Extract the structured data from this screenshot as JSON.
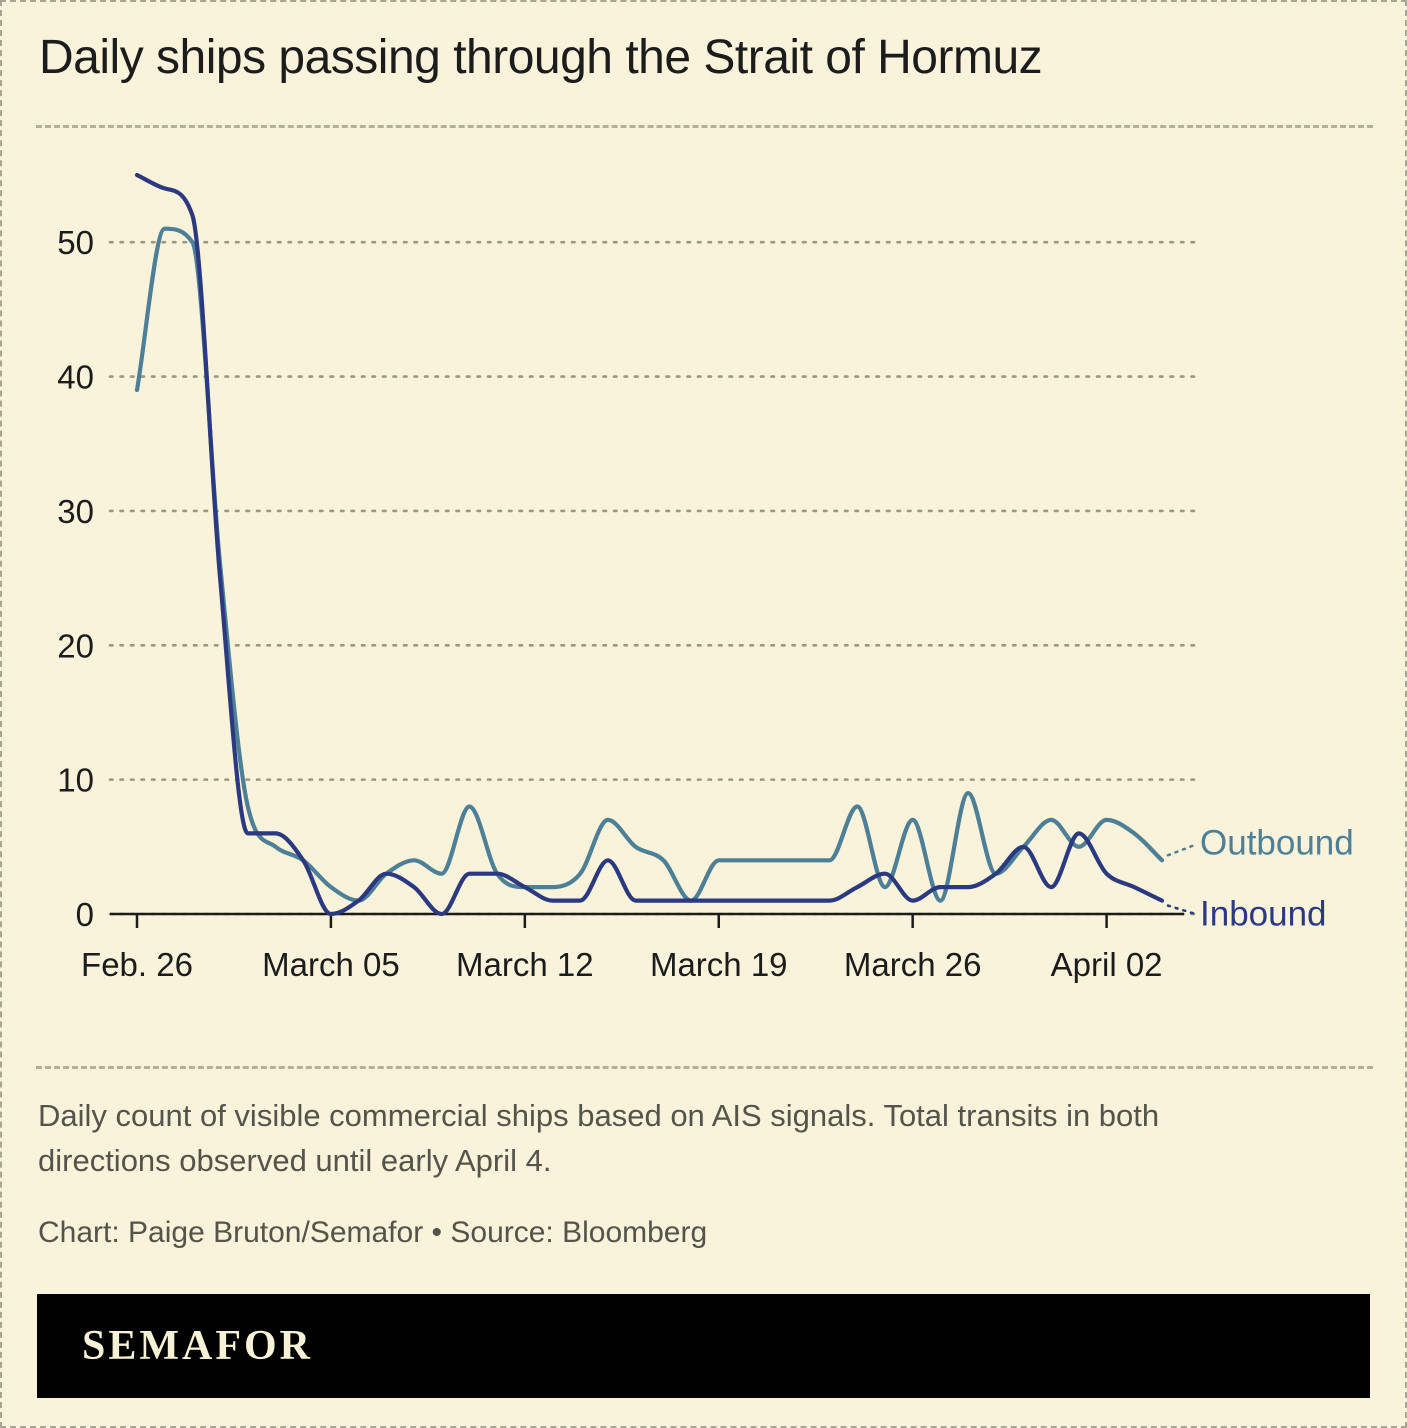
{
  "page": {
    "caption": "Daily count of visible commercial ships based on AIS signals. Total transits in both directions observed until early April 4.",
    "credit": "Chart: Paige Bruton/Semafor • Source: Bloomberg",
    "logo": "SEMAFOR"
  },
  "style": {
    "background": "#f8f3da",
    "border_color": "#aaa492",
    "grid_color": "#9d9680",
    "axis_color": "#1c1c1c",
    "text_color": "#1c1c1c",
    "muted_text_color": "#55534a",
    "footer_bg": "#010101",
    "footer_text_color": "#f7f1d6",
    "outbound_color": "#4d7f97",
    "inbound_color": "#2b3980"
  },
  "chart_data": {
    "type": "line",
    "title": "Daily ships passing through the Strait of Hormuz",
    "xlabel": "",
    "ylabel": "",
    "ylim": [
      0,
      55
    ],
    "yticks": [
      0,
      10,
      20,
      30,
      40,
      50
    ],
    "grid": "dotted-horizontal",
    "legend_position": "line-end-labels",
    "x": [
      "Feb. 26",
      "Feb. 27",
      "Feb. 28",
      "March 01",
      "March 02",
      "March 03",
      "March 04",
      "March 05",
      "March 06",
      "March 07",
      "March 08",
      "March 09",
      "March 10",
      "March 11",
      "March 12",
      "March 13",
      "March 14",
      "March 15",
      "March 16",
      "March 17",
      "March 18",
      "March 19",
      "March 20",
      "March 21",
      "March 22",
      "March 23",
      "March 24",
      "March 25",
      "March 26",
      "March 27",
      "March 28",
      "March 29",
      "March 30",
      "March 31",
      "April 01",
      "April 02",
      "April 03",
      "April 04"
    ],
    "x_tick_labels": [
      "Feb. 26",
      "March 05",
      "March 12",
      "March 19",
      "March 26",
      "April 02"
    ],
    "x_tick_indices": [
      0,
      7,
      14,
      21,
      28,
      35
    ],
    "series": [
      {
        "name": "Outbound",
        "color": "#4d7f97",
        "values": [
          39,
          51,
          50,
          26,
          8,
          5,
          4,
          2,
          1,
          3,
          4,
          3,
          8,
          3,
          2,
          2,
          3,
          7,
          5,
          4,
          1,
          4,
          4,
          4,
          4,
          4,
          8,
          2,
          7,
          1,
          9,
          3,
          5,
          7,
          5,
          7,
          6,
          4
        ]
      },
      {
        "name": "Inbound",
        "color": "#2b3980",
        "values": [
          55,
          54,
          52,
          25,
          6,
          6,
          4,
          0,
          1,
          3,
          2,
          0,
          3,
          3,
          2,
          1,
          1,
          4,
          1,
          1,
          1,
          1,
          1,
          1,
          1,
          1,
          2,
          3,
          1,
          2,
          2,
          3,
          5,
          2,
          6,
          3,
          2,
          1
        ]
      }
    ]
  }
}
